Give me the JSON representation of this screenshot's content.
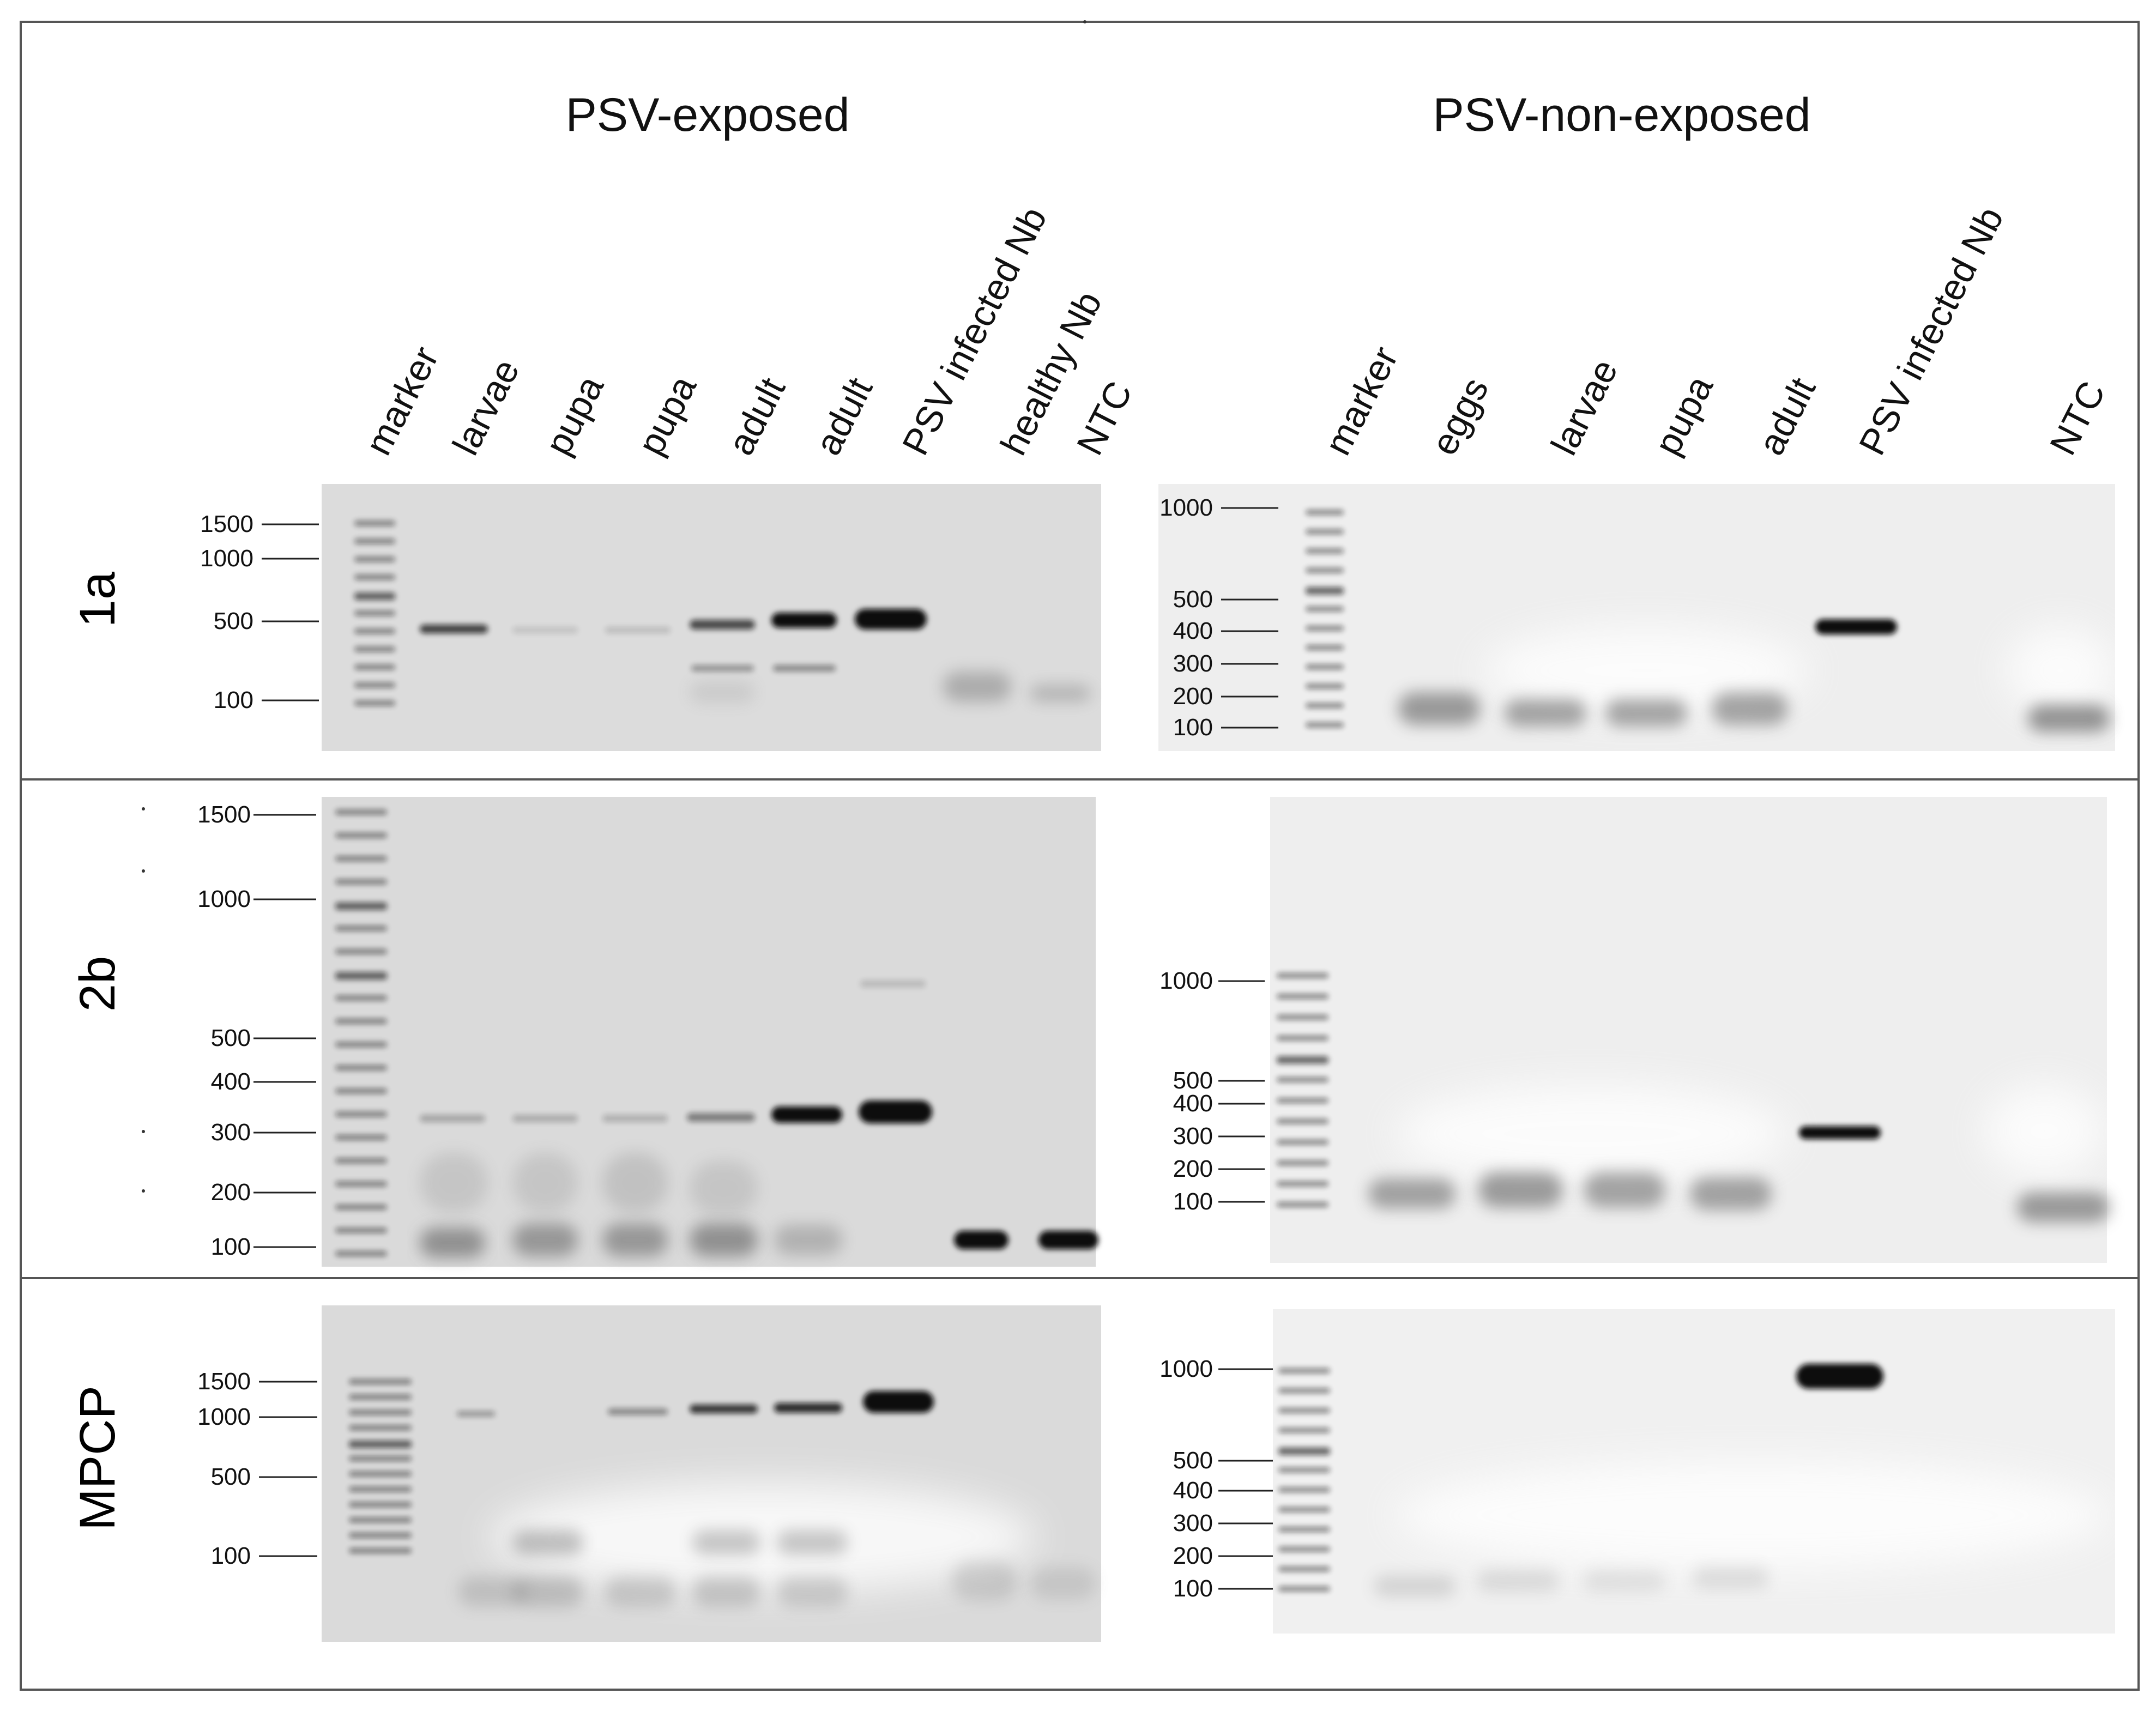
{
  "headers": {
    "left": "PSV-exposed",
    "right": "PSV-non-exposed"
  },
  "lanes": {
    "left": [
      "marker",
      "larvae",
      "pupa",
      "pupa",
      "adult",
      "adult",
      "PSV  infected Nb",
      "healthy Nb",
      "NTC"
    ],
    "right": [
      "marker",
      "eggs",
      "larvae",
      "pupa",
      "adult",
      "PSV infected Nb",
      "NTC"
    ]
  },
  "rows": [
    {
      "label": "1a",
      "left_markers": [
        "1500",
        "1000",
        "500",
        "100"
      ],
      "right_markers": [
        "1000",
        "500",
        "400",
        "300",
        "200",
        "100"
      ]
    },
    {
      "label": "2b",
      "left_markers": [
        "1500",
        "1000",
        "500",
        "400",
        "300",
        "200",
        "100"
      ],
      "right_markers": [
        "1000",
        "500",
        "400",
        "300",
        "200",
        "100"
      ]
    },
    {
      "label": "MPCP",
      "left_markers": [
        "1500",
        "1000",
        "500",
        "100"
      ],
      "right_markers": [
        "1000",
        "500",
        "400",
        "300",
        "200",
        "100"
      ]
    }
  ],
  "colors": {
    "gel_background": "#e4e4e4",
    "band": "#111111",
    "frame": "#555555"
  }
}
